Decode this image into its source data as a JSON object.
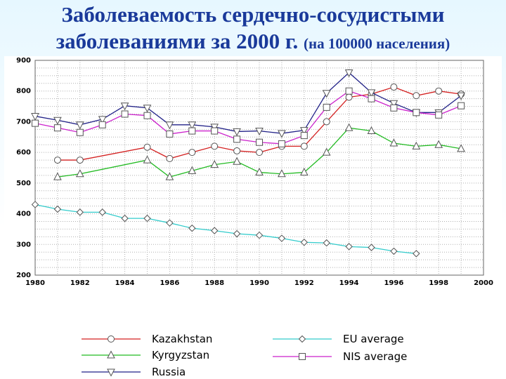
{
  "title": {
    "line1": "Заболеваемость сердечно-сосудистыми",
    "line2_main": "заболеваниями за 2000 г.",
    "line2_sub": "(на 100000 населения)"
  },
  "chart_data": {
    "type": "line",
    "xlim": [
      1980,
      2000
    ],
    "ylim": [
      200,
      900
    ],
    "x_ticks": [
      "1980",
      "1982",
      "1984",
      "1986",
      "1988",
      "1990",
      "1992",
      "1994",
      "1996",
      "1998",
      "2000"
    ],
    "y_ticks": [
      "200",
      "300",
      "400",
      "500",
      "600",
      "700",
      "800",
      "900"
    ],
    "grid": true,
    "legend_position": "bottom",
    "series": [
      {
        "name": "Kazakhstan",
        "color": "#d42020",
        "marker": "circle",
        "points": [
          [
            1981,
            575
          ],
          [
            1982,
            575
          ],
          [
            1985,
            617
          ],
          [
            1986,
            580
          ],
          [
            1987,
            600
          ],
          [
            1988,
            620
          ],
          [
            1989,
            605
          ],
          [
            1990,
            600
          ],
          [
            1991,
            620
          ],
          [
            1992,
            620
          ],
          [
            1993,
            700
          ],
          [
            1994,
            780
          ],
          [
            1995,
            790
          ],
          [
            1996,
            813
          ],
          [
            1997,
            785
          ],
          [
            1998,
            800
          ],
          [
            1999,
            790
          ]
        ]
      },
      {
        "name": "Kyrgyzstan",
        "color": "#22bb22",
        "marker": "triangle-up",
        "points": [
          [
            1981,
            520
          ],
          [
            1982,
            530
          ],
          [
            1985,
            575
          ],
          [
            1986,
            520
          ],
          [
            1987,
            540
          ],
          [
            1988,
            560
          ],
          [
            1989,
            570
          ],
          [
            1990,
            535
          ],
          [
            1991,
            530
          ],
          [
            1992,
            535
          ],
          [
            1993,
            600
          ],
          [
            1994,
            680
          ],
          [
            1995,
            670
          ],
          [
            1996,
            630
          ],
          [
            1997,
            620
          ],
          [
            1998,
            625
          ],
          [
            1999,
            612
          ]
        ]
      },
      {
        "name": "Russia",
        "color": "#222288",
        "marker": "triangle-down",
        "points": [
          [
            1980,
            718
          ],
          [
            1981,
            705
          ],
          [
            1982,
            690
          ],
          [
            1983,
            708
          ],
          [
            1984,
            752
          ],
          [
            1985,
            745
          ],
          [
            1986,
            690
          ],
          [
            1987,
            690
          ],
          [
            1988,
            683
          ],
          [
            1989,
            668
          ],
          [
            1990,
            670
          ],
          [
            1991,
            662
          ],
          [
            1992,
            672
          ],
          [
            1993,
            793
          ],
          [
            1994,
            860
          ],
          [
            1995,
            795
          ],
          [
            1996,
            760
          ],
          [
            1997,
            730
          ],
          [
            1998,
            730
          ],
          [
            1999,
            785
          ]
        ]
      },
      {
        "name": "EU average",
        "color": "#33cccc",
        "marker": "diamond",
        "points": [
          [
            1980,
            430
          ],
          [
            1981,
            415
          ],
          [
            1982,
            405
          ],
          [
            1983,
            405
          ],
          [
            1984,
            385
          ],
          [
            1985,
            385
          ],
          [
            1986,
            370
          ],
          [
            1987,
            353
          ],
          [
            1988,
            345
          ],
          [
            1989,
            335
          ],
          [
            1990,
            330
          ],
          [
            1991,
            320
          ],
          [
            1992,
            307
          ],
          [
            1993,
            305
          ],
          [
            1994,
            293
          ],
          [
            1995,
            290
          ],
          [
            1996,
            278
          ],
          [
            1997,
            270
          ]
        ]
      },
      {
        "name": "NIS average",
        "color": "#cc22cc",
        "marker": "square",
        "points": [
          [
            1980,
            695
          ],
          [
            1981,
            680
          ],
          [
            1982,
            665
          ],
          [
            1983,
            690
          ],
          [
            1984,
            725
          ],
          [
            1985,
            720
          ],
          [
            1986,
            660
          ],
          [
            1987,
            670
          ],
          [
            1988,
            670
          ],
          [
            1989,
            643
          ],
          [
            1990,
            633
          ],
          [
            1991,
            628
          ],
          [
            1992,
            655
          ],
          [
            1993,
            747
          ],
          [
            1994,
            800
          ],
          [
            1995,
            775
          ],
          [
            1996,
            745
          ],
          [
            1997,
            730
          ],
          [
            1998,
            722
          ],
          [
            1999,
            752
          ]
        ]
      }
    ]
  }
}
